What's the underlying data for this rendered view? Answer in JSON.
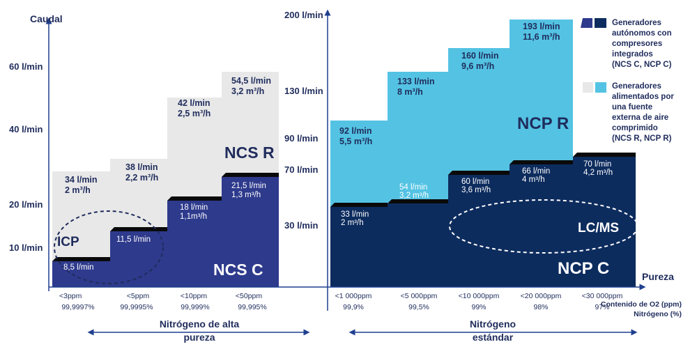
{
  "colors": {
    "axis": "#1f3f8f",
    "ncs_r": "#e8e8e8",
    "ncs_c": "#2e3a8c",
    "ncp_r": "#54c3e3",
    "ncp_c": "#0d2c5e",
    "step_edge": "#0a0a0a",
    "ellipse": "#1f2c5c",
    "text": "#1f2c5c"
  },
  "axes": {
    "y_title": "Caudal",
    "x_title": "Pureza",
    "left_ticks": [
      "60 l/min",
      "40 l/min",
      "20 l/min",
      "10 l/min"
    ],
    "right_ticks": [
      "200 l/min",
      "130 l/min",
      "90 l/min",
      "70 l/min",
      "30 l/min"
    ],
    "row_headers": [
      "Contenido de O2 (ppm)",
      "Nitrógeno (%)"
    ]
  },
  "labels": {
    "icp": "ICP",
    "ncs_r": "NCS R",
    "ncs_c": "NCS C",
    "ncp_r": "NCP R",
    "ncp_c": "NCP C",
    "lcms": "LC/MS",
    "high_purity_line1": "Nitrógeno de alta",
    "high_purity_line2": "pureza",
    "standard_line1": "Nitrógeno",
    "standard_line2": "estándar"
  },
  "legend": {
    "integrated": [
      "Generadores",
      "autónomos con",
      "compresores",
      "integrados",
      "(NCS C, NCP C)"
    ],
    "external": [
      "Generadores",
      "alimentados por",
      "una fuente",
      "externa de aire",
      "comprimido",
      "(NCS R, NCP R)"
    ]
  },
  "chart_data": [
    {
      "type": "bar",
      "title": "",
      "ylabel": "Caudal",
      "xlabel": "Pureza",
      "categories": [
        "<3ppm",
        "<5ppm",
        "<10ppm",
        "<50ppm"
      ],
      "categories_n2": [
        "99,9997%",
        "99,9995%",
        "99,999%",
        "99,995%"
      ],
      "group_label": "Nitrógeno de alta pureza",
      "series": [
        {
          "name": "NCS R",
          "values_lmin": [
            34,
            38,
            42,
            54.5
          ],
          "values_m3h": [
            2,
            2.2,
            2.5,
            3.2
          ],
          "labels": [
            [
              "34 l/min",
              "2 m³/h"
            ],
            [
              "38 l/min",
              "2,2 m³/h"
            ],
            [
              "42 l/min",
              "2,5 m³/h"
            ],
            [
              "54,5 l/min",
              "3,2 m³/h"
            ]
          ]
        },
        {
          "name": "NCS C",
          "values_lmin": [
            8.5,
            11.5,
            18,
            21.5
          ],
          "values_m3h": [
            null,
            null,
            1.1,
            1.3
          ],
          "labels": [
            [
              "8,5 l/min"
            ],
            [
              "11,5 l/min"
            ],
            [
              "18 l/min",
              "1,1m³/h"
            ],
            [
              "21,5 l/min",
              "1,3 m³/h"
            ]
          ]
        }
      ]
    },
    {
      "type": "bar",
      "title": "",
      "ylabel": "",
      "xlabel": "Pureza",
      "categories": [
        "<1 000ppm",
        "<5 000ppm",
        "<10 000ppm",
        "<20 000ppm",
        "<30 000ppm"
      ],
      "categories_n2": [
        "99,9%",
        "99,5%",
        "99%",
        "98%",
        "97%"
      ],
      "group_label": "Nitrógeno estándar",
      "series": [
        {
          "name": "NCP R",
          "values_lmin": [
            92,
            133,
            160,
            193
          ],
          "values_m3h": [
            5.5,
            8,
            9.6,
            11.6
          ],
          "labels": [
            [
              "92 l/min",
              "5,5 m³/h"
            ],
            [
              "133 l/min",
              "8 m³/h"
            ],
            [
              "160 l/min",
              "9,6 m³/h"
            ],
            [
              "193 l/min",
              "11,6 m³/h"
            ]
          ]
        },
        {
          "name": "NCP C",
          "values_lmin": [
            33,
            54,
            60,
            66,
            70
          ],
          "values_m3h": [
            2,
            3.2,
            3.6,
            4,
            4.2
          ],
          "labels": [
            [
              "33 l/min",
              "2 m³/h"
            ],
            [
              "54 l/min",
              "3,2 m³/h"
            ],
            [
              "60 l/min",
              "3,6 m³/h"
            ],
            [
              "66 l/min",
              "4 m³/h"
            ],
            [
              "70 l/min",
              "4,2 m³/h"
            ]
          ]
        }
      ]
    }
  ]
}
